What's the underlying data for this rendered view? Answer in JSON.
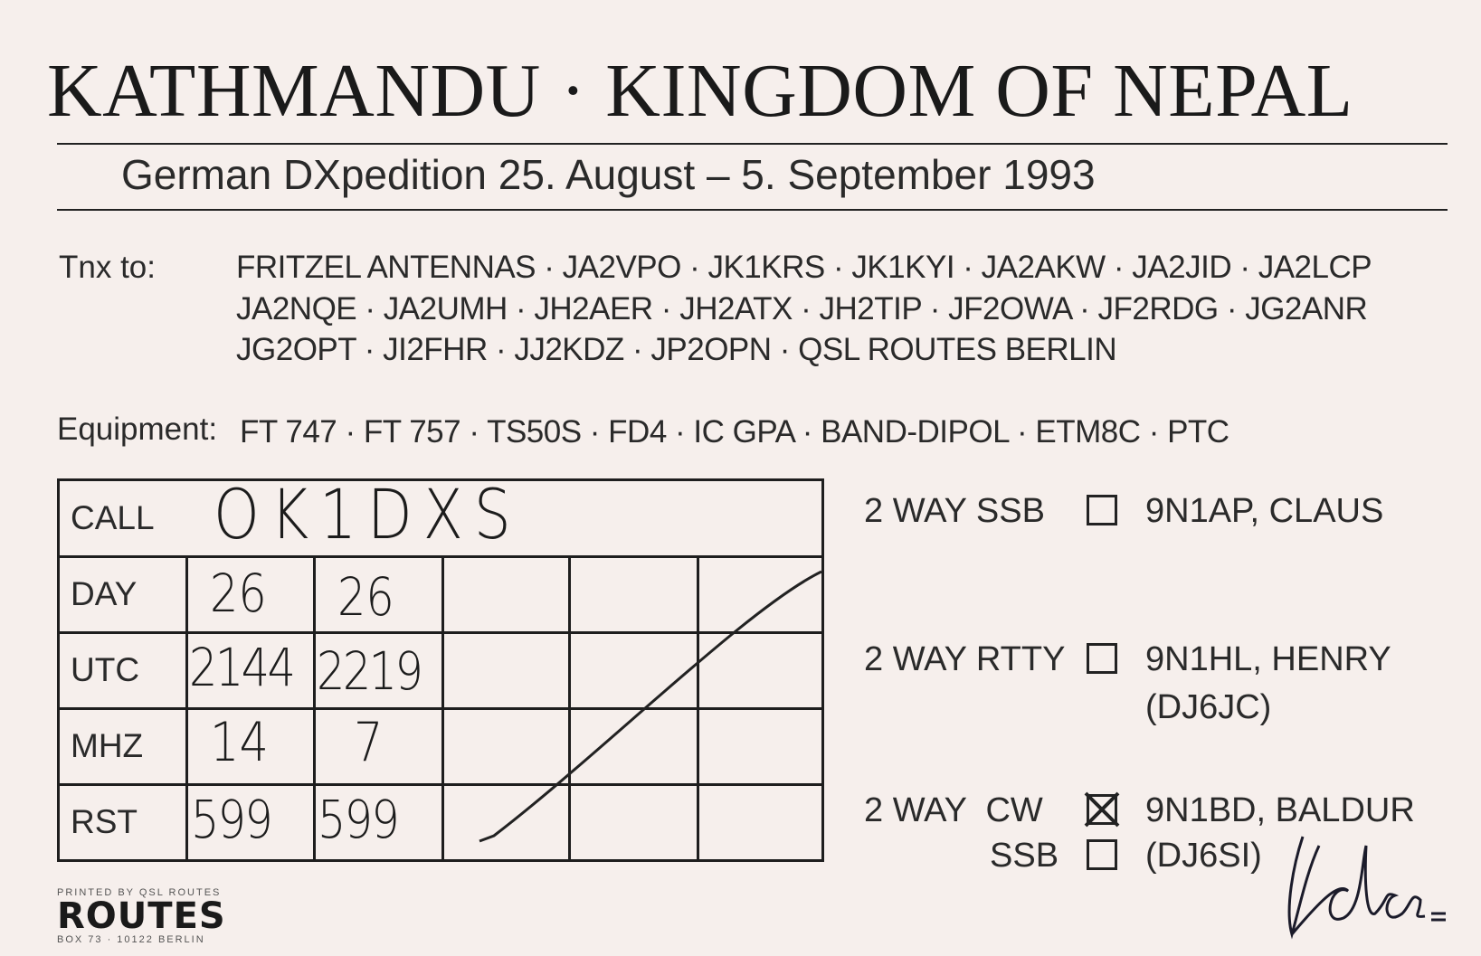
{
  "header": {
    "title": "KATHMANDU · KINGDOM OF NEPAL",
    "subtitle": "German DXpedition 25. August – 5. September 1993"
  },
  "thanks": {
    "label": "Tnx to:",
    "lines": [
      "FRITZEL ANTENNAS · JA2VPO · JK1KRS · JK1KYI · JA2AKW · JA2JID · JA2LCP",
      "JA2NQE · JA2UMH · JH2AER · JH2ATX · JH2TIP · JF2OWA · JF2RDG · JG2ANR",
      "JG2OPT · JI2FHR · JJ2KDZ · JP2OPN · QSL ROUTES BERLIN"
    ]
  },
  "equipment": {
    "label": "Equipment:",
    "value": "FT 747 · FT 757 · TS50S · FD4 · IC GPA · BAND-DIPOL · ETM8C · PTC"
  },
  "log": {
    "call_label": "CALL",
    "call_value": "OK1DXS",
    "rows": [
      {
        "label": "DAY",
        "values": [
          "26",
          "26"
        ]
      },
      {
        "label": "UTC",
        "values": [
          "2144",
          "2219"
        ]
      },
      {
        "label": "MHZ",
        "values": [
          "14",
          "7"
        ]
      },
      {
        "label": "RST",
        "values": [
          "599",
          "599"
        ]
      }
    ]
  },
  "modes": [
    {
      "label": "2 WAY SSB",
      "checked": false,
      "operator": "9N1AP, CLAUS",
      "note": ""
    },
    {
      "label": "2 WAY RTTY",
      "checked": false,
      "operator": "9N1HL, HENRY",
      "note": "(DJ6JC)"
    },
    {
      "label": "2 WAY  CW",
      "checked": true,
      "operator": "9N1BD, BALDUR",
      "note": ""
    },
    {
      "label": "SSB",
      "checked": false,
      "operator": "(DJ6SI)",
      "note": ""
    }
  ],
  "signature": "Baldur",
  "printer": {
    "line1": "PRINTED BY QSL ROUTES",
    "brand": "ROUTES",
    "line2": "BOX 73 · 10122 BERLIN"
  }
}
